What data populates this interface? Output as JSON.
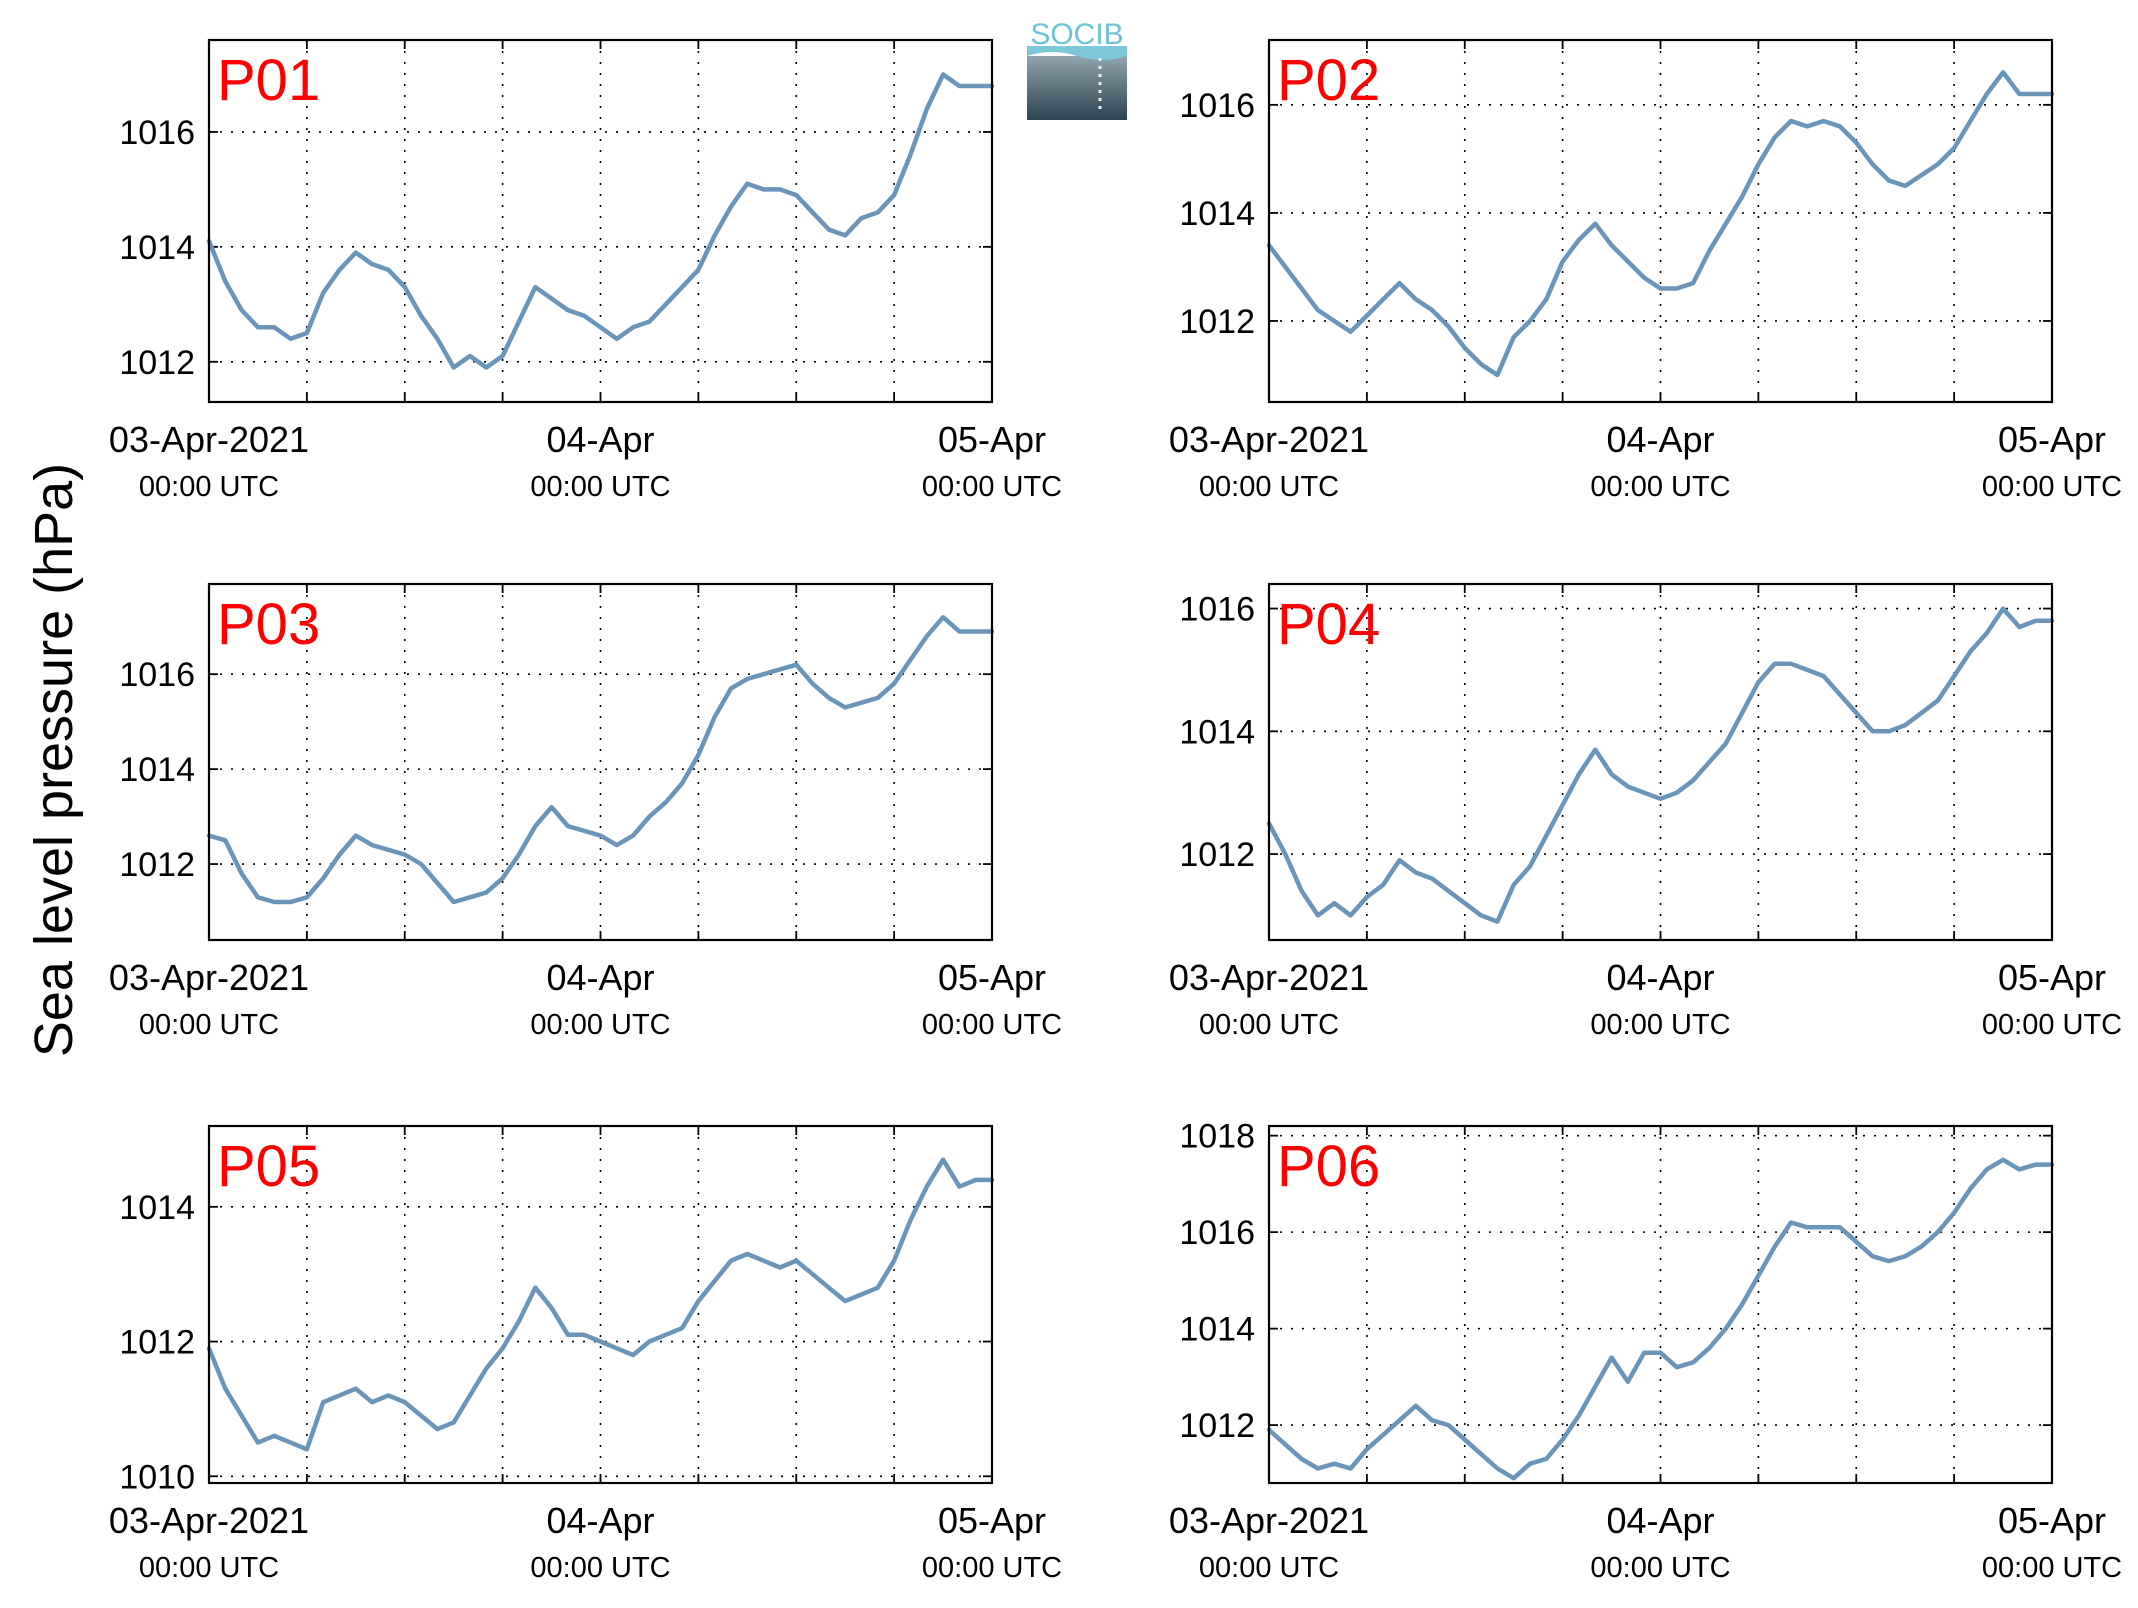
{
  "figure": {
    "ylabel": "Sea level pressure (hPa)",
    "logo_text": "SOCIB",
    "line_color": "#6a95bb",
    "label_color": "#ff0000"
  },
  "x_ticks": [
    {
      "t": 0,
      "date": "03-Apr-2021",
      "time": "00:00 UTC"
    },
    {
      "t": 24,
      "date": "04-Apr",
      "time": "00:00 UTC"
    },
    {
      "t": 48,
      "date": "05-Apr",
      "time": "00:00 UTC"
    }
  ],
  "chart_data": [
    {
      "type": "line",
      "label": "P01",
      "xlim": [
        0,
        48
      ],
      "ylim": [
        1011.3,
        1017.6
      ],
      "yticks": [
        1012,
        1014,
        1016
      ],
      "x": [
        0,
        1,
        2,
        3,
        4,
        5,
        6,
        7,
        8,
        9,
        10,
        11,
        12,
        13,
        14,
        15,
        16,
        17,
        18,
        19,
        20,
        21,
        22,
        23,
        24,
        25,
        26,
        27,
        28,
        29,
        30,
        31,
        32,
        33,
        34,
        35,
        36,
        37,
        38,
        39,
        40,
        41,
        42,
        43,
        44,
        45,
        46,
        47,
        48
      ],
      "y": [
        1014.1,
        1013.4,
        1012.9,
        1012.6,
        1012.6,
        1012.4,
        1012.5,
        1013.2,
        1013.6,
        1013.9,
        1013.7,
        1013.6,
        1013.3,
        1012.8,
        1012.4,
        1011.9,
        1012.1,
        1011.9,
        1012.1,
        1012.7,
        1013.3,
        1013.1,
        1012.9,
        1012.8,
        1012.6,
        1012.4,
        1012.6,
        1012.7,
        1013.0,
        1013.3,
        1013.6,
        1014.2,
        1014.7,
        1015.1,
        1015.0,
        1015.0,
        1014.9,
        1014.6,
        1014.3,
        1014.2,
        1014.5,
        1014.6,
        1014.9,
        1015.6,
        1016.4,
        1017.0,
        1016.8,
        1016.8,
        1016.8
      ]
    },
    {
      "type": "line",
      "label": "P02",
      "xlim": [
        0,
        48
      ],
      "ylim": [
        1010.5,
        1017.2
      ],
      "yticks": [
        1012,
        1014,
        1016
      ],
      "x": [
        0,
        1,
        2,
        3,
        4,
        5,
        6,
        7,
        8,
        9,
        10,
        11,
        12,
        13,
        14,
        15,
        16,
        17,
        18,
        19,
        20,
        21,
        22,
        23,
        24,
        25,
        26,
        27,
        28,
        29,
        30,
        31,
        32,
        33,
        34,
        35,
        36,
        37,
        38,
        39,
        40,
        41,
        42,
        43,
        44,
        45,
        46,
        47,
        48
      ],
      "y": [
        1013.4,
        1013.0,
        1012.6,
        1012.2,
        1012.0,
        1011.8,
        1012.1,
        1012.4,
        1012.7,
        1012.4,
        1012.2,
        1011.9,
        1011.5,
        1011.2,
        1011.0,
        1011.7,
        1012.0,
        1012.4,
        1013.1,
        1013.5,
        1013.8,
        1013.4,
        1013.1,
        1012.8,
        1012.6,
        1012.6,
        1012.7,
        1013.3,
        1013.8,
        1014.3,
        1014.9,
        1015.4,
        1015.7,
        1015.6,
        1015.7,
        1015.6,
        1015.3,
        1014.9,
        1014.6,
        1014.5,
        1014.7,
        1014.9,
        1015.2,
        1015.7,
        1016.2,
        1016.6,
        1016.2,
        1016.2,
        1016.2
      ]
    },
    {
      "type": "line",
      "label": "P03",
      "xlim": [
        0,
        48
      ],
      "ylim": [
        1010.4,
        1017.9
      ],
      "yticks": [
        1012,
        1014,
        1016
      ],
      "x": [
        0,
        1,
        2,
        3,
        4,
        5,
        6,
        7,
        8,
        9,
        10,
        11,
        12,
        13,
        14,
        15,
        16,
        17,
        18,
        19,
        20,
        21,
        22,
        23,
        24,
        25,
        26,
        27,
        28,
        29,
        30,
        31,
        32,
        33,
        34,
        35,
        36,
        37,
        38,
        39,
        40,
        41,
        42,
        43,
        44,
        45,
        46,
        47,
        48
      ],
      "y": [
        1012.6,
        1012.5,
        1011.8,
        1011.3,
        1011.2,
        1011.2,
        1011.3,
        1011.7,
        1012.2,
        1012.6,
        1012.4,
        1012.3,
        1012.2,
        1012.0,
        1011.6,
        1011.2,
        1011.3,
        1011.4,
        1011.7,
        1012.2,
        1012.8,
        1013.2,
        1012.8,
        1012.7,
        1012.6,
        1012.4,
        1012.6,
        1013.0,
        1013.3,
        1013.7,
        1014.3,
        1015.1,
        1015.7,
        1015.9,
        1016.0,
        1016.1,
        1016.2,
        1015.8,
        1015.5,
        1015.3,
        1015.4,
        1015.5,
        1015.8,
        1016.3,
        1016.8,
        1017.2,
        1016.9,
        1016.9,
        1016.9
      ]
    },
    {
      "type": "line",
      "label": "P04",
      "xlim": [
        0,
        48
      ],
      "ylim": [
        1010.6,
        1016.4
      ],
      "yticks": [
        1012,
        1014,
        1016
      ],
      "x": [
        0,
        1,
        2,
        3,
        4,
        5,
        6,
        7,
        8,
        9,
        10,
        11,
        12,
        13,
        14,
        15,
        16,
        17,
        18,
        19,
        20,
        21,
        22,
        23,
        24,
        25,
        26,
        27,
        28,
        29,
        30,
        31,
        32,
        33,
        34,
        35,
        36,
        37,
        38,
        39,
        40,
        41,
        42,
        43,
        44,
        45,
        46,
        47,
        48
      ],
      "y": [
        1012.5,
        1012.0,
        1011.4,
        1011.0,
        1011.2,
        1011.0,
        1011.3,
        1011.5,
        1011.9,
        1011.7,
        1011.6,
        1011.4,
        1011.2,
        1011.0,
        1010.9,
        1011.5,
        1011.8,
        1012.3,
        1012.8,
        1013.3,
        1013.7,
        1013.3,
        1013.1,
        1013.0,
        1012.9,
        1013.0,
        1013.2,
        1013.5,
        1013.8,
        1014.3,
        1014.8,
        1015.1,
        1015.1,
        1015.0,
        1014.9,
        1014.6,
        1014.3,
        1014.0,
        1014.0,
        1014.1,
        1014.3,
        1014.5,
        1014.9,
        1015.3,
        1015.6,
        1016.0,
        1015.7,
        1015.8,
        1015.8
      ]
    },
    {
      "type": "line",
      "label": "P05",
      "xlim": [
        0,
        48
      ],
      "ylim": [
        1009.9,
        1015.2
      ],
      "yticks": [
        1010,
        1012,
        1014
      ],
      "x": [
        0,
        1,
        2,
        3,
        4,
        5,
        6,
        7,
        8,
        9,
        10,
        11,
        12,
        13,
        14,
        15,
        16,
        17,
        18,
        19,
        20,
        21,
        22,
        23,
        24,
        25,
        26,
        27,
        28,
        29,
        30,
        31,
        32,
        33,
        34,
        35,
        36,
        37,
        38,
        39,
        40,
        41,
        42,
        43,
        44,
        45,
        46,
        47,
        48
      ],
      "y": [
        1011.9,
        1011.3,
        1010.9,
        1010.5,
        1010.6,
        1010.5,
        1010.4,
        1011.1,
        1011.2,
        1011.3,
        1011.1,
        1011.2,
        1011.1,
        1010.9,
        1010.7,
        1010.8,
        1011.2,
        1011.6,
        1011.9,
        1012.3,
        1012.8,
        1012.5,
        1012.1,
        1012.1,
        1012.0,
        1011.9,
        1011.8,
        1012.0,
        1012.1,
        1012.2,
        1012.6,
        1012.9,
        1013.2,
        1013.3,
        1013.2,
        1013.1,
        1013.2,
        1013.0,
        1012.8,
        1012.6,
        1012.7,
        1012.8,
        1013.2,
        1013.8,
        1014.3,
        1014.7,
        1014.3,
        1014.4,
        1014.4
      ]
    },
    {
      "type": "line",
      "label": "P06",
      "xlim": [
        0,
        48
      ],
      "ylim": [
        1010.8,
        1018.2
      ],
      "yticks": [
        1012,
        1014,
        1016,
        1018
      ],
      "x": [
        0,
        1,
        2,
        3,
        4,
        5,
        6,
        7,
        8,
        9,
        10,
        11,
        12,
        13,
        14,
        15,
        16,
        17,
        18,
        19,
        20,
        21,
        22,
        23,
        24,
        25,
        26,
        27,
        28,
        29,
        30,
        31,
        32,
        33,
        34,
        35,
        36,
        37,
        38,
        39,
        40,
        41,
        42,
        43,
        44,
        45,
        46,
        47,
        48
      ],
      "y": [
        1011.9,
        1011.6,
        1011.3,
        1011.1,
        1011.2,
        1011.1,
        1011.5,
        1011.8,
        1012.1,
        1012.4,
        1012.1,
        1012.0,
        1011.7,
        1011.4,
        1011.1,
        1010.9,
        1011.2,
        1011.3,
        1011.7,
        1012.2,
        1012.8,
        1013.4,
        1012.9,
        1013.5,
        1013.5,
        1013.2,
        1013.3,
        1013.6,
        1014.0,
        1014.5,
        1015.1,
        1015.7,
        1016.2,
        1016.1,
        1016.1,
        1016.1,
        1015.8,
        1015.5,
        1015.4,
        1015.5,
        1015.7,
        1016.0,
        1016.4,
        1016.9,
        1017.3,
        1017.5,
        1017.3,
        1017.4,
        1017.4
      ]
    }
  ]
}
